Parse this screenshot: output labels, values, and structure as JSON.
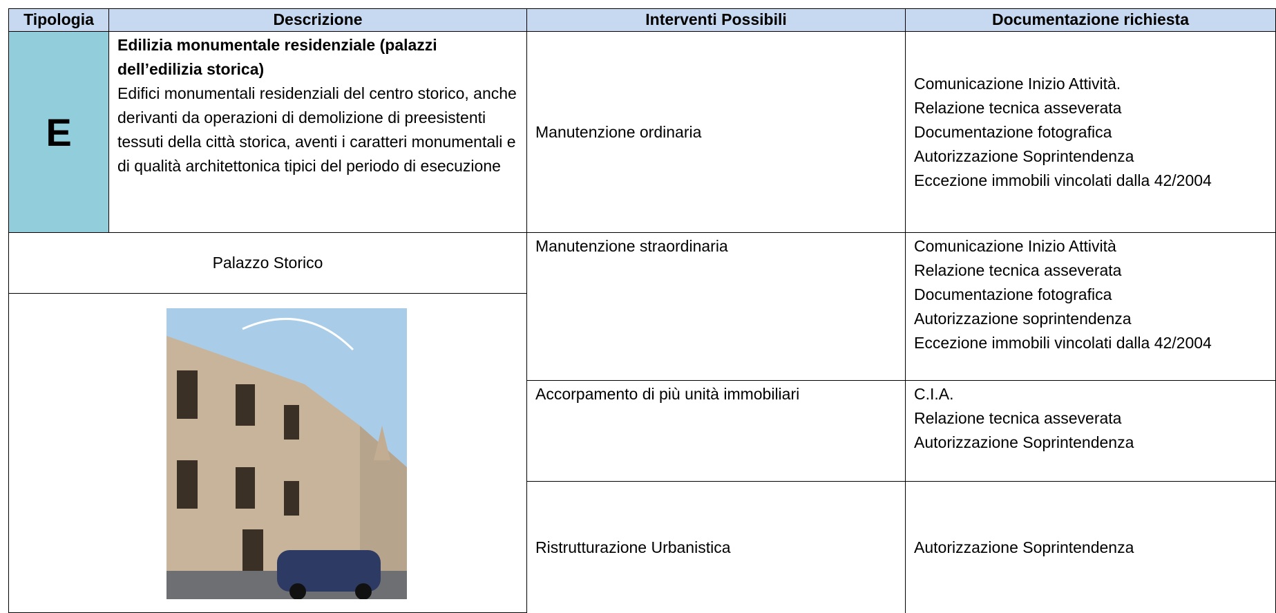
{
  "table": {
    "header": [
      "Tipologia",
      "Descrizione",
      "Interventi Possibili",
      "Documentazione richiesta"
    ],
    "type_code": "E",
    "description": {
      "title": "Edilizia monumentale residenziale (palazzi dell’edilizia storica)",
      "body": "Edifici monumentali residenziali del centro storico, anche derivanti da operazioni di demolizione di preesistenti tessuti della città storica, aventi i caratteri monumentali e di qualità architettonica tipici del periodo di esecuzione"
    },
    "example_label": "Palazzo Storico",
    "rows": [
      {
        "intervention": "Manutenzione ordinaria",
        "documents": [
          "Comunicazione Inizio Attività.",
          "Relazione tecnica asseverata",
          "Documentazione fotografica",
          "Autorizzazione Soprintendenza",
          "Eccezione immobili vincolati dalla 42/2004"
        ]
      },
      {
        "intervention": "Manutenzione straordinaria",
        "documents": [
          "Comunicazione Inizio Attività",
          "Relazione tecnica asseverata",
          "Documentazione fotografica",
          "Autorizzazione soprintendenza",
          "Eccezione immobili vincolati dalla 42/2004"
        ]
      },
      {
        "intervention": "Accorpamento di più unità immobiliari",
        "documents": [
          "C.I.A.",
          "Relazione tecnica asseverata",
          "Autorizzazione Soprintendenza"
        ]
      },
      {
        "intervention": "Ristrutturazione Urbanistica",
        "documents": [
          "Autorizzazione Soprintendenza"
        ]
      }
    ]
  }
}
